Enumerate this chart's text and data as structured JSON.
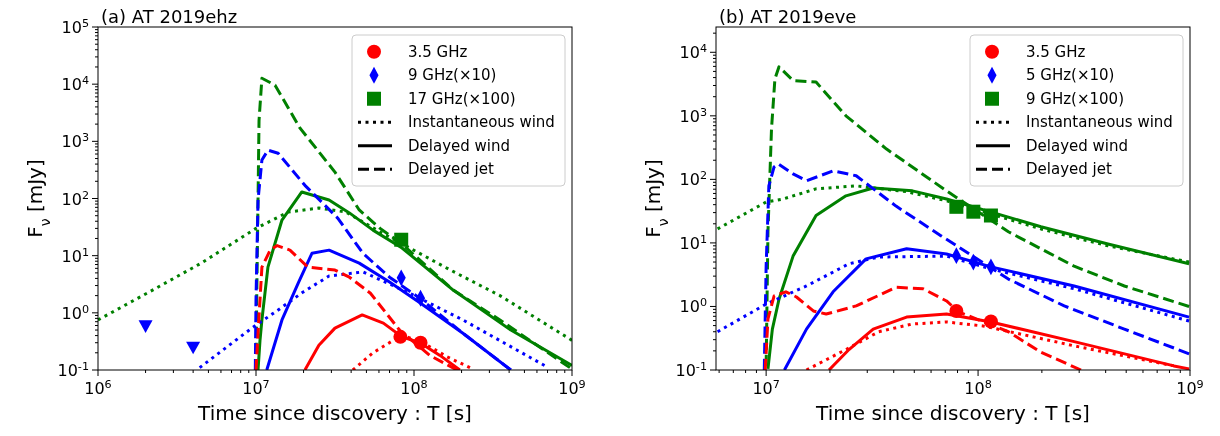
{
  "chart_data": [
    {
      "type": "line",
      "title": "(a) AT 2019ehz",
      "xlabel": "Time since discovery : T [s]",
      "ylabel": "F$_{ν}$ [mJy]",
      "log": "xy",
      "legend": "top right",
      "xlim": [
        1000000.0,
        1000000000.0
      ],
      "ylim": [
        0.1,
        100000.0
      ],
      "xticks": [
        {
          "value": 1000000.0,
          "label": "10$^{6}$"
        },
        {
          "value": 10000000.0,
          "label": "10$^{7}$"
        },
        {
          "value": 100000000.0,
          "label": "10$^{8}$"
        },
        {
          "value": 1000000000.0,
          "label": "10$^{9}$"
        }
      ],
      "yticks": [
        {
          "value": 0.1,
          "label": "10$^{-1}$"
        },
        {
          "value": 1,
          "label": "10$^{0}$"
        },
        {
          "value": 10,
          "label": "10$^{1}$"
        },
        {
          "value": 100,
          "label": "10$^{2}$"
        },
        {
          "value": 1000,
          "label": "10$^{3}$"
        },
        {
          "value": 10000,
          "label": "10$^{4}$"
        },
        {
          "value": 100000,
          "label": "10$^{5}$"
        }
      ],
      "series": [
        {
          "name": "3.5 GHz",
          "type": "scatter",
          "marker": "circle",
          "color": "#ff0000",
          "x": [
            82000000.0,
            110000000.0
          ],
          "values": [
            0.38,
            0.3
          ]
        },
        {
          "name": "9 GHz(×10)",
          "type": "scatter",
          "marker": "diamond",
          "color": "#0000ff",
          "x": [
            83000000.0,
            110000000.0
          ],
          "values": [
            4.1,
            1.8
          ]
        },
        {
          "name": "17 GHz(×100)",
          "type": "scatter",
          "marker": "square",
          "color": "#008000",
          "x": [
            83000000.0
          ],
          "values": [
            19
          ]
        },
        {
          "type": "scatter",
          "marker": "triangle",
          "color": "#0000ff",
          "x": [
            2000000.0,
            4000000.0
          ],
          "values": [
            0.59,
            0.25
          ]
        },
        {
          "line_style": "dotted",
          "color": "#008000",
          "x": [
            1000000.0,
            2100000.0,
            4500000.0,
            10000000.0,
            16000000.0,
            25000000.0,
            37000000.0,
            61000000.0,
            94000000.0,
            170000000.0,
            350000000.0,
            1000000000.0
          ],
          "values": [
            0.75,
            2.3,
            7.4,
            30,
            58,
            68,
            58,
            26,
            13.6,
            5.6,
            2.0,
            0.33
          ]
        },
        {
          "line_style": "dashed",
          "color": "#008000",
          "x": [
            10000000.0,
            10100000.0,
            10300000.0,
            10450000.0,
            10900000.0,
            13200000.0,
            19000000.0,
            31600000.0,
            45000000.0,
            61000000.0,
            84000000.0,
            177000000.0,
            350000000.0,
            970000000.0
          ],
          "values": [
            0.1,
            1.7,
            94,
            2300,
            12700,
            9600,
            1700,
            290,
            63,
            30,
            16,
            2.5,
            0.75,
            0.11
          ]
        },
        {
          "line_style": "solid",
          "color": "#008000",
          "x": [
            10300000.0,
            10600000.0,
            10900000.0,
            11900000.0,
            14600000.0,
            19500000.0,
            29000000.0,
            39000000.0,
            55000000.0,
            84000000.0,
            177000000.0,
            410000000.0,
            1000000000.0
          ],
          "values": [
            0.1,
            0.33,
            0.75,
            6.3,
            42,
            130,
            94,
            56,
            28,
            13.6,
            2.5,
            0.5,
            0.12
          ]
        },
        {
          "line_style": "dotted",
          "color": "#0000ff",
          "x": [
            4400000.0,
            9400000.0,
            13800000.0,
            19800000.0,
            29000000.0,
            47500000.0,
            94000000.0,
            204000000.0,
            670000000.0
          ],
          "values": [
            0.11,
            0.54,
            1.12,
            2.3,
            4.4,
            5.2,
            2.2,
            0.75,
            0.12
          ]
        },
        {
          "line_style": "dashed",
          "color": "#0000ff",
          "x": [
            9900000.0,
            10000000.0,
            10300000.0,
            10900000.0,
            11900000.0,
            13800000.0,
            20400000.0,
            33000000.0,
            47500000.0,
            70000000.0,
            106000000.0,
            204000000.0,
            410000000.0
          ],
          "values": [
            0.1,
            1.7,
            94,
            470,
            700,
            620,
            170,
            45,
            11,
            4.2,
            1.9,
            0.44,
            0.1
          ]
        },
        {
          "line_style": "solid",
          "color": "#0000ff",
          "x": [
            11700000.0,
            14600000.0,
            18500000.0,
            22600000.0,
            29000000.0,
            45000000.0,
            70000000.0,
            109000000.0,
            204000000.0,
            410000000.0
          ],
          "values": [
            0.1,
            0.75,
            3.3,
            11,
            12.5,
            7.4,
            3.45,
            1.5,
            0.44,
            0.1
          ]
        },
        {
          "line_style": "dotted",
          "color": "#ff0000",
          "x": [
            41000000.0,
            55000000.0,
            84000000.0,
            114000000.0,
            162000000.0,
            226000000.0
          ],
          "values": [
            0.1,
            0.2,
            0.41,
            0.3,
            0.17,
            0.11
          ]
        },
        {
          "line_style": "dashed",
          "color": "#ff0000",
          "x": [
            10000000.0,
            10300000.0,
            10900000.0,
            12300000.0,
            13600000.0,
            16400000.0,
            21300000.0,
            31600000.0,
            39000000.0,
            53000000.0,
            81000000.0,
            126000000.0,
            187000000.0
          ],
          "values": [
            0.1,
            0.44,
            6.3,
            12.5,
            15,
            12.5,
            6.3,
            5.6,
            4.2,
            2.2,
            0.5,
            0.18,
            0.1
          ]
        },
        {
          "line_style": "solid",
          "color": "#ff0000",
          "x": [
            20400000.0,
            25000000.0,
            31600000.0,
            47000000.0,
            64000000.0,
            84000000.0,
            109000000.0,
            146000000.0,
            195000000.0
          ],
          "values": [
            0.1,
            0.27,
            0.54,
            0.92,
            0.66,
            0.38,
            0.3,
            0.18,
            0.1
          ]
        },
        {
          "name": "Instantaneous wind",
          "line_style": "dotted",
          "color": "#000000"
        },
        {
          "name": "Delayed wind",
          "line_style": "solid",
          "color": "#000000"
        },
        {
          "name": "Delayed jet",
          "line_style": "dashed",
          "color": "#000000"
        }
      ]
    },
    {
      "type": "line",
      "title": "(b) AT 2019eve",
      "xlabel": "Time since discovery : T [s]",
      "ylabel": "F$_{ν}$ [mJy]",
      "log": "xy",
      "legend": "top right",
      "xlim": [
        5800000.0,
        1000000000.0
      ],
      "ylim": [
        0.1,
        25000.0
      ],
      "xticks": [
        {
          "value": 10000000.0,
          "label": "10$^{7}$"
        },
        {
          "value": 100000000.0,
          "label": "10$^{8}$"
        },
        {
          "value": 1000000000.0,
          "label": "10$^{9}$"
        }
      ],
      "yticks": [
        {
          "value": 0.1,
          "label": "10$^{-1}$"
        },
        {
          "value": 1,
          "label": "10$^{0}$"
        },
        {
          "value": 10,
          "label": "10$^{1}$"
        },
        {
          "value": 100,
          "label": "10$^{2}$"
        },
        {
          "value": 1000,
          "label": "10$^{3}$"
        },
        {
          "value": 10000,
          "label": "10$^{4}$"
        }
      ],
      "series": [
        {
          "name": "3.5 GHz",
          "type": "scatter",
          "marker": "circle",
          "color": "#ff0000",
          "x": [
            79000000.0,
            115000000.0
          ],
          "values": [
            0.85,
            0.58
          ]
        },
        {
          "name": "5 GHz(×10)",
          "type": "scatter",
          "marker": "diamond",
          "color": "#0000ff",
          "x": [
            79000000.0,
            95000000.0,
            115000000.0
          ],
          "values": [
            6.3,
            5.0,
            4.2
          ]
        },
        {
          "name": "9 GHz(×100)",
          "type": "scatter",
          "marker": "square",
          "color": "#008000",
          "x": [
            79000000.0,
            95000000.0,
            115000000.0
          ],
          "values": [
            37,
            31,
            27
          ]
        },
        {
          "line_style": "dotted",
          "color": "#008000",
          "x": [
            5900000.0,
            10000000.0,
            12000000.0,
            17200000.0,
            26600000.0,
            46000000.0,
            71000000.0,
            198000000.0,
            410000000.0,
            990000000.0
          ],
          "values": [
            16.6,
            44,
            49,
            71,
            79,
            64,
            46,
            16.6,
            9.0,
            5.0
          ]
        },
        {
          "line_style": "dashed",
          "color": "#008000",
          "x": [
            10000000.0,
            10200000.0,
            10600000.0,
            11000000.0,
            11500000.0,
            13400000.0,
            17200000.0,
            23800000.0,
            37000000.0,
            71000000.0,
            139000000.0,
            284000000.0,
            490000000.0,
            990000000.0
          ],
          "values": [
            0.116,
            15,
            620,
            3800,
            5900,
            3600,
            3400,
            1000,
            300,
            66,
            15,
            4.3,
            2.1,
            1.0
          ]
        },
        {
          "line_style": "solid",
          "color": "#008000",
          "x": [
            10200000.0,
            10700000.0,
            11500000.0,
            13400000.0,
            17200000.0,
            23800000.0,
            32000000.0,
            49000000.0,
            71000000.0,
            198000000.0,
            410000000.0,
            990000000.0
          ],
          "values": [
            0.104,
            0.44,
            1.3,
            6.2,
            27,
            55,
            73,
            66,
            49,
            18,
            9.6,
            4.7
          ]
        },
        {
          "line_style": "dotted",
          "color": "#0000ff",
          "x": [
            5900000.0,
            10000000.0,
            15500000.0,
            24600000.0,
            34000000.0,
            71000000.0,
            115000000.0,
            284000000.0,
            990000000.0
          ],
          "values": [
            0.4,
            1.09,
            2.1,
            4.7,
            6.0,
            6.2,
            3.9,
            1.9,
            0.59
          ]
        },
        {
          "line_style": "dashed",
          "color": "#0000ff",
          "x": [
            9800000.0,
            10000000.0,
            10300000.0,
            10900000.0,
            11400000.0,
            13400000.0,
            15500000.0,
            20700000.0,
            26600000.0,
            41000000.0,
            67000000.0,
            139000000.0,
            255000000.0,
            490000000.0,
            990000000.0
          ],
          "values": [
            0.1,
            4.3,
            79,
            157,
            175,
            122,
            95,
            136,
            114,
            38,
            12.9,
            2.7,
            1.02,
            0.44,
            0.18
          ]
        },
        {
          "line_style": "solid",
          "color": "#0000ff",
          "x": [
            12200000.0,
            15500000.0,
            20700000.0,
            29600000.0,
            46000000.0,
            71000000.0,
            115000000.0,
            284000000.0,
            990000000.0
          ],
          "values": [
            0.1,
            0.44,
            1.7,
            5.6,
            8.1,
            6.7,
            4.2,
            2.1,
            0.68
          ]
        },
        {
          "line_style": "dotted",
          "color": "#ff0000",
          "x": [
            15500000.0,
            23800000.0,
            34000000.0,
            49000000.0,
            71000000.0,
            107000000.0,
            284000000.0,
            840000000.0
          ],
          "values": [
            0.1,
            0.21,
            0.4,
            0.53,
            0.57,
            0.49,
            0.24,
            0.116
          ]
        },
        {
          "line_style": "dashed",
          "color": "#ff0000",
          "x": [
            9900000.0,
            10200000.0,
            10900000.0,
            12400000.0,
            13900000.0,
            16700000.0,
            19200000.0,
            26600000.0,
            41000000.0,
            55000000.0,
            71000000.0,
            81000000.0,
            139000000.0,
            198000000.0,
            306000000.0
          ],
          "values": [
            0.1,
            0.64,
            1.46,
            1.7,
            1.41,
            0.85,
            0.76,
            1.02,
            2.0,
            1.9,
            1.22,
            0.82,
            0.4,
            0.19,
            0.1
          ]
        },
        {
          "line_style": "solid",
          "color": "#ff0000",
          "x": [
            19800000.0,
            24600000.0,
            32000000.0,
            46000000.0,
            71000000.0,
            115000000.0,
            284000000.0,
            840000000.0,
            990000000.0
          ],
          "values": [
            0.1,
            0.21,
            0.44,
            0.68,
            0.76,
            0.57,
            0.28,
            0.116,
            0.104
          ]
        },
        {
          "name": "Instantaneous wind",
          "line_style": "dotted",
          "color": "#000000"
        },
        {
          "name": "Delayed wind",
          "line_style": "solid",
          "color": "#000000"
        },
        {
          "name": "Delayed jet",
          "line_style": "dashed",
          "color": "#000000"
        }
      ]
    }
  ]
}
